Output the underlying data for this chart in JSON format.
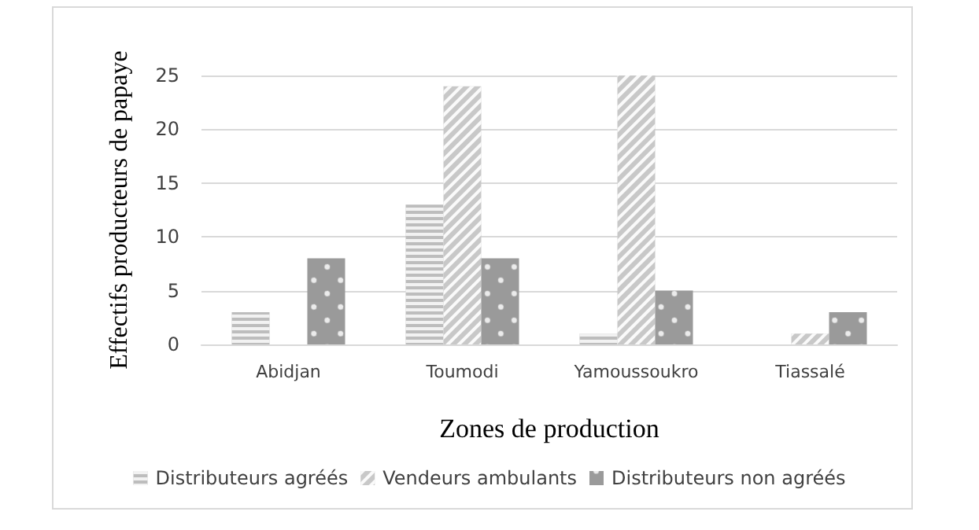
{
  "chart_data": {
    "type": "bar",
    "xlabel": "Zones de production",
    "ylabel": "Effectifs producteurs de papaye",
    "categories": [
      "Abidjan",
      "Toumodi",
      "Yamoussoukro",
      "Tiassalé"
    ],
    "series": [
      {
        "name": "Distributeurs agréés",
        "color": "#bdbdbd",
        "values": [
          3,
          13,
          1,
          0
        ]
      },
      {
        "name": "Vendeurs ambulants",
        "color": "#c8c8c8",
        "values": [
          0,
          24,
          25,
          1
        ]
      },
      {
        "name": "Distributeurs non agréés",
        "color": "#9a9a9a",
        "values": [
          8,
          8,
          5,
          3
        ]
      }
    ],
    "ylim": [
      0,
      25
    ],
    "yticks": [
      0,
      5,
      10,
      15,
      20,
      25
    ],
    "grid": "y",
    "legend": "bottom"
  }
}
